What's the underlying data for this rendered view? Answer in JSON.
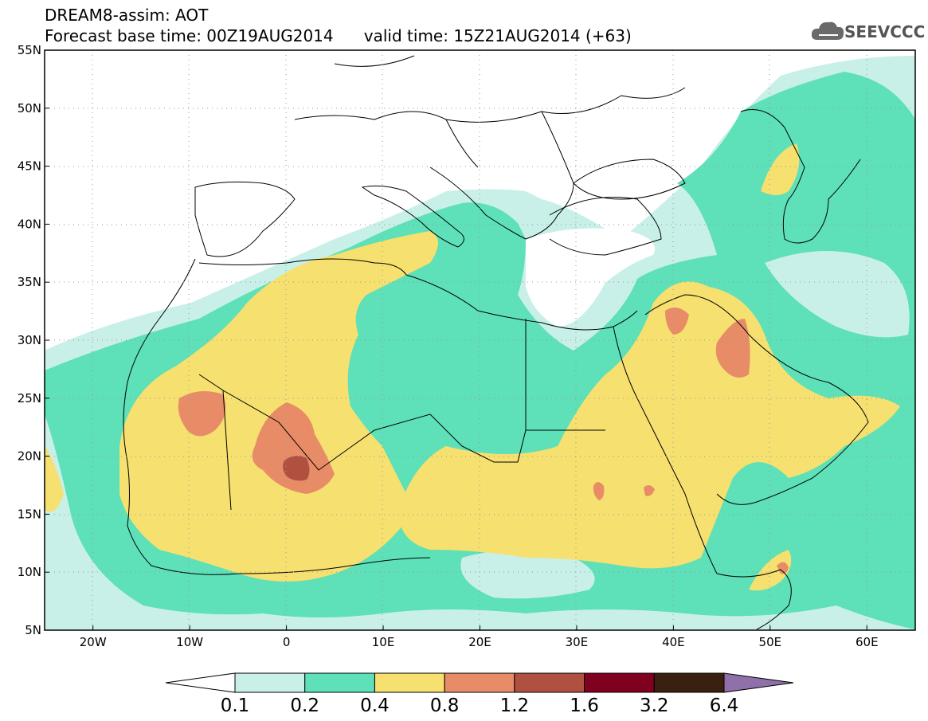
{
  "title": {
    "line1": "DREAM8-assim: AOT",
    "line2_left": "Forecast base time: 00Z19AUG2014",
    "line2_right": "valid time: 15Z21AUG2014 (+63)"
  },
  "logo": {
    "text": "SEEVCCC",
    "icon": "cloud-logo-icon"
  },
  "map": {
    "lon_range": [
      -25,
      65
    ],
    "lat_range": [
      5,
      55
    ],
    "lat_labels": [
      "55N",
      "50N",
      "45N",
      "40N",
      "35N",
      "30N",
      "25N",
      "20N",
      "15N",
      "10N",
      "5N"
    ],
    "lat_values": [
      55,
      50,
      45,
      40,
      35,
      30,
      25,
      20,
      15,
      10,
      5
    ],
    "lon_labels": [
      "20W",
      "10W",
      "0",
      "10E",
      "20E",
      "30E",
      "40E",
      "50E",
      "60E"
    ],
    "lon_values": [
      -20,
      -10,
      0,
      10,
      20,
      30,
      40,
      50,
      60
    ],
    "ocean_color": "#ffffff",
    "grid": "dotted"
  },
  "legend": {
    "labels": [
      "0.1",
      "0.2",
      "0.4",
      "0.8",
      "1.2",
      "1.6",
      "3.2",
      "6.4"
    ],
    "colors": [
      "#ffffff",
      "#c8f0e8",
      "#5ee0b8",
      "#f5e070",
      "#e88c68",
      "#b05040",
      "#800020",
      "#3a2010",
      "#9070a8"
    ]
  }
}
